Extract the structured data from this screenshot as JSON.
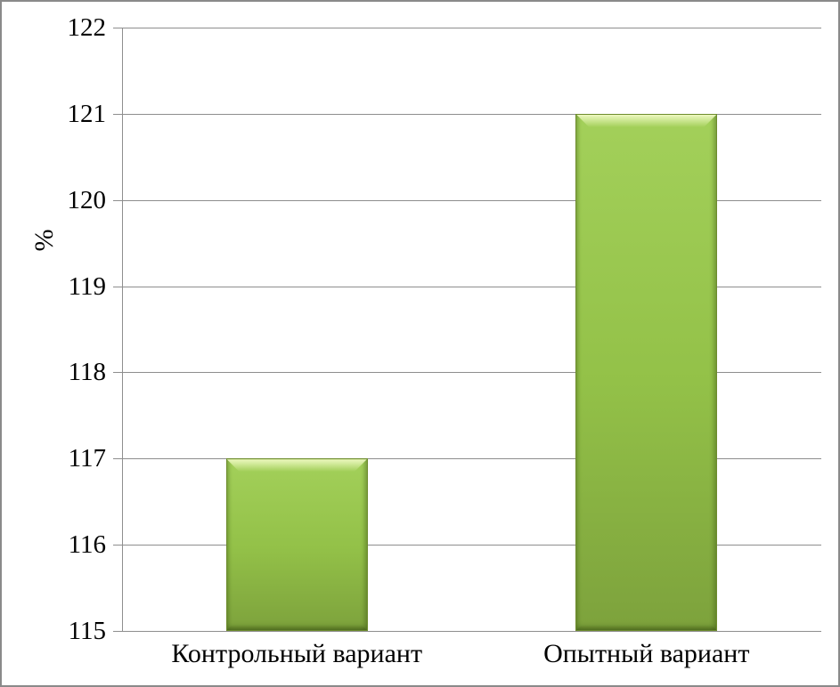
{
  "chart_data": {
    "type": "bar",
    "title": "",
    "categories": [
      "Контрольный вариант",
      "Опытный вариант"
    ],
    "values": [
      117,
      121
    ],
    "xlabel": "",
    "ylabel": "%",
    "ylim": [
      115,
      122
    ],
    "yticks": [
      115,
      116,
      117,
      118,
      119,
      120,
      121,
      122
    ],
    "grid": true,
    "legend_position": "none",
    "colors": {
      "bar_fill_top": "#a3d05a",
      "bar_fill_mid": "#93c148",
      "bar_fill_bottom": "#7da23c",
      "bar_border": "#6e8c2e",
      "bar_bevel_highlight": "#eef9c0",
      "gridline": "#8e8e8e",
      "axis": "#8e8e8e",
      "frame_border": "#8a8a8a",
      "text": "#000000"
    }
  }
}
